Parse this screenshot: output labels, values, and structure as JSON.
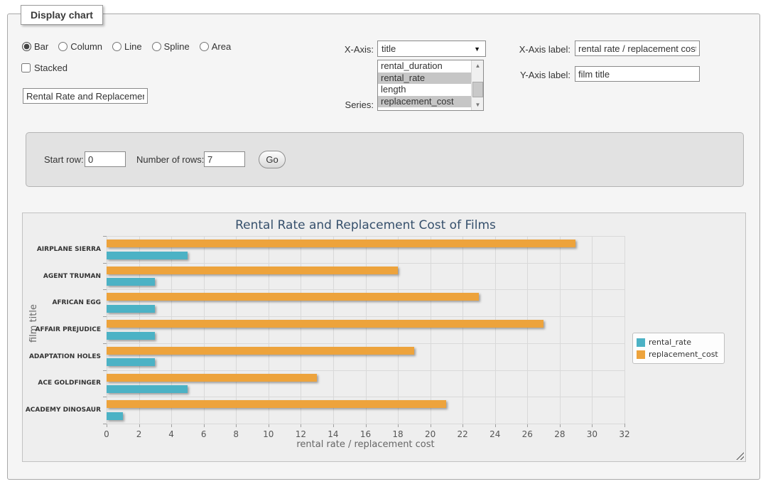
{
  "fieldset": {
    "legend": "Display chart"
  },
  "chart_types": [
    {
      "label": "Bar",
      "selected": true
    },
    {
      "label": "Column",
      "selected": false
    },
    {
      "label": "Line",
      "selected": false
    },
    {
      "label": "Spline",
      "selected": false
    },
    {
      "label": "Area",
      "selected": false
    }
  ],
  "stacked": {
    "label": "Stacked",
    "checked": false
  },
  "title_input": {
    "value": "Rental Rate and Replacement Cost of Films"
  },
  "x_axis": {
    "label": "X-Axis:",
    "selected": "title",
    "arrow": "▼"
  },
  "series_select": {
    "label": "Series:",
    "options": [
      {
        "label": "rental_duration",
        "selected": false
      },
      {
        "label": "rental_rate",
        "selected": true
      },
      {
        "label": "length",
        "selected": false
      },
      {
        "label": "replacement_cost",
        "selected": true
      }
    ],
    "scroll_up": "▲",
    "scroll_down": "▼"
  },
  "x_axis_label": {
    "label": "X-Axis label:",
    "value": "rental rate / replacement cost"
  },
  "y_axis_label": {
    "label": "Y-Axis label:",
    "value": "film title"
  },
  "row_controls": {
    "start_row_label": "Start row:",
    "start_row_value": "0",
    "num_rows_label": "Number of rows:",
    "num_rows_value": "7",
    "go_label": "Go"
  },
  "chart_data": {
    "type": "bar",
    "title": "Rental Rate and Replacement Cost of Films",
    "categories": [
      "AIRPLANE SIERRA",
      "AGENT TRUMAN",
      "AFRICAN EGG",
      "AFFAIR PREJUDICE",
      "ADAPTATION HOLES",
      "ACE GOLDFINGER",
      "ACADEMY DINOSAUR"
    ],
    "series": [
      {
        "name": "rental_rate",
        "color": "#4CB2C5",
        "values": [
          4.99,
          2.99,
          2.99,
          2.99,
          2.99,
          4.99,
          0.99
        ]
      },
      {
        "name": "replacement_cost",
        "color": "#EDA33C",
        "values": [
          28.99,
          17.99,
          22.99,
          26.99,
          18.99,
          12.99,
          20.99
        ]
      }
    ],
    "xlabel": "rental rate / replacement cost",
    "ylabel": "film title",
    "xlim": [
      0,
      32
    ],
    "xtick_step": 2,
    "grid": true,
    "legend_position": "right",
    "draw_order_note": "replacement_cost drawn above rental_rate in each group"
  }
}
